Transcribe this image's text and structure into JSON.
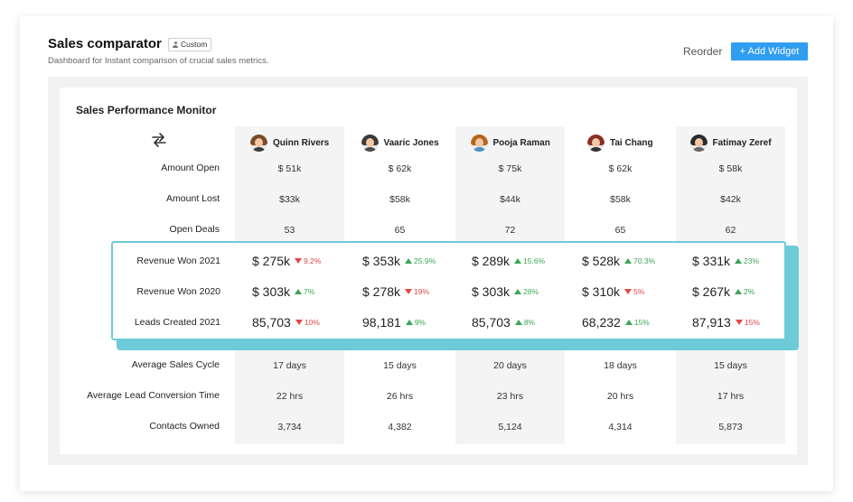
{
  "header": {
    "title": "Sales comparator",
    "badge": "Custom",
    "subtitle": "Dashboard for Instant comparison of crucial sales metrics.",
    "reorder_label": "Reorder",
    "add_widget_label": "+ Add Widget"
  },
  "widget": {
    "title": "Sales Performance Monitor",
    "people": [
      {
        "name": "Quinn Rivers",
        "hair": "#7a4a2a",
        "shirt": "#3b3b3b"
      },
      {
        "name": "Vaaric Jones",
        "hair": "#3a3a3a",
        "shirt": "#4a4a4a"
      },
      {
        "name": "Pooja Raman",
        "hair": "#b5651d",
        "shirt": "#4a90c8"
      },
      {
        "name": "Tai Chang",
        "hair": "#8a2f24",
        "shirt": "#333333"
      },
      {
        "name": "Fatimay Zeref",
        "hair": "#2a2a2a",
        "shirt": "#666666"
      }
    ],
    "top_rows": [
      {
        "label": "Amount Open",
        "values": [
          "$ 51k",
          "$ 62k",
          "$ 75k",
          "$ 62k",
          "$ 58k"
        ]
      },
      {
        "label": "Amount Lost",
        "values": [
          "$33k",
          "$58k",
          "$44k",
          "$58k",
          "$42k"
        ]
      },
      {
        "label": "Open Deals",
        "values": [
          "53",
          "65",
          "72",
          "65",
          "62"
        ]
      }
    ],
    "highlight_rows": [
      {
        "label": "Revenue Won 2021",
        "cells": [
          {
            "value": "$ 275k",
            "trend": "down",
            "pct": "9.2%"
          },
          {
            "value": "$ 353k",
            "trend": "up",
            "pct": "25.9%"
          },
          {
            "value": "$ 289k",
            "trend": "up",
            "pct": "15.6%"
          },
          {
            "value": "$ 528k",
            "trend": "up",
            "pct": "70.3%"
          },
          {
            "value": "$ 331k",
            "trend": "up",
            "pct": "23%"
          }
        ]
      },
      {
        "label": "Revenue Won 2020",
        "cells": [
          {
            "value": "$ 303k",
            "trend": "up",
            "pct": "7%"
          },
          {
            "value": "$ 278k",
            "trend": "down",
            "pct": "19%"
          },
          {
            "value": "$ 303k",
            "trend": "up",
            "pct": "28%"
          },
          {
            "value": "$ 310k",
            "trend": "down",
            "pct": "5%"
          },
          {
            "value": "$ 267k",
            "trend": "up",
            "pct": "2%"
          }
        ]
      },
      {
        "label": "Leads Created 2021",
        "cells": [
          {
            "value": "85,703",
            "trend": "down",
            "pct": "10%"
          },
          {
            "value": "98,181",
            "trend": "up",
            "pct": "9%"
          },
          {
            "value": "85,703",
            "trend": "up",
            "pct": "8%"
          },
          {
            "value": "68,232",
            "trend": "up",
            "pct": "15%"
          },
          {
            "value": "87,913",
            "trend": "down",
            "pct": "15%"
          }
        ]
      }
    ],
    "bottom_rows": [
      {
        "label": "Average Sales Cycle",
        "values": [
          "17 days",
          "15 days",
          "20 days",
          "18 days",
          "15 days"
        ]
      },
      {
        "label": "Average Lead Conversion Time",
        "values": [
          "22 hrs",
          "26 hrs",
          "23 hrs",
          "20 hrs",
          "17 hrs"
        ]
      },
      {
        "label": "Contacts Owned",
        "values": [
          "3,734",
          "4,382",
          "5,124",
          "4,314",
          "5,873"
        ]
      }
    ]
  },
  "colors": {
    "accent": "#2f9df0",
    "highlight_border": "#6ccbd6",
    "up": "#3aa655",
    "down": "#e04848"
  },
  "icons": {
    "swap": "swap-arrows-icon",
    "badge": "user-icon"
  }
}
